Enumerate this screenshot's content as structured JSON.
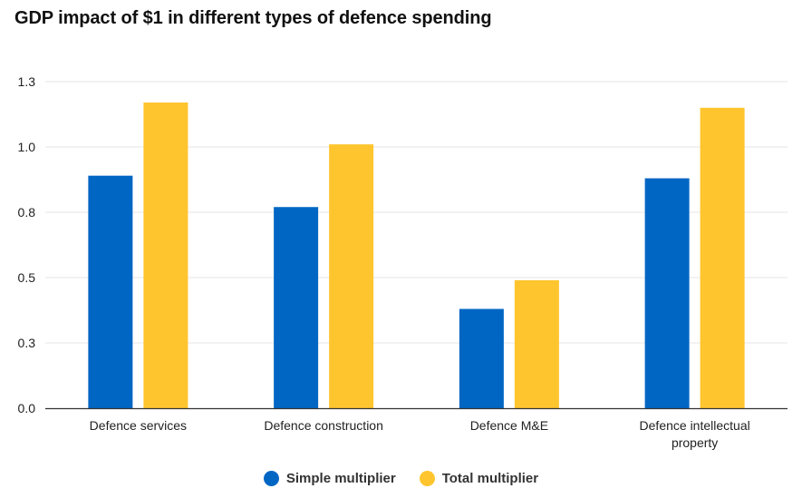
{
  "chart_data": {
    "type": "bar",
    "title": "GDP impact of $1 in different types of defence spending",
    "xlabel": "",
    "ylabel": "",
    "ylim": [
      0,
      1.25
    ],
    "yticks": [
      0,
      0.25,
      0.5,
      0.75,
      1.0,
      1.25
    ],
    "ytick_labels": [
      "0.0",
      "0.3",
      "0.5",
      "0.8",
      "1.0",
      "1.3"
    ],
    "grid": true,
    "legend_position": "bottom",
    "categories": [
      [
        "Defence services"
      ],
      [
        "Defence construction"
      ],
      [
        "Defence M&E"
      ],
      [
        "Defence intellectual",
        "property"
      ]
    ],
    "series": [
      {
        "name": "Simple multiplier",
        "color": "#0066c4",
        "values": [
          0.89,
          0.77,
          0.38,
          0.88
        ]
      },
      {
        "name": "Total multiplier",
        "color": "#ffc52e",
        "values": [
          1.17,
          1.01,
          0.49,
          1.15
        ]
      }
    ]
  }
}
